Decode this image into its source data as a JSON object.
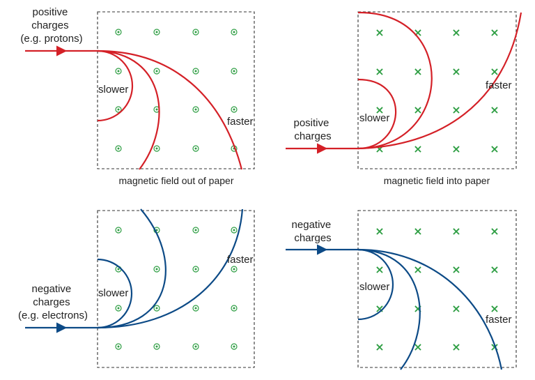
{
  "panels": {
    "top_left": {
      "field_symbol": "dot-out-of-page-icon",
      "incoming_label_lines": [
        "positive",
        "charges",
        "(e.g. protons)"
      ],
      "slower_label": "slower",
      "faster_label": "faster",
      "caption": "magnetic field out of paper",
      "path_color": "#d42027"
    },
    "top_right": {
      "field_symbol": "cross-into-page-icon",
      "incoming_label_lines": [
        "positive",
        "charges"
      ],
      "slower_label": "slower",
      "faster_label": "faster",
      "caption": "magnetic field into paper",
      "path_color": "#d42027"
    },
    "bottom_left": {
      "field_symbol": "dot-out-of-page-icon",
      "incoming_label_lines": [
        "negative",
        "charges",
        "(e.g. electrons)"
      ],
      "slower_label": "slower",
      "faster_label": "faster",
      "caption": "",
      "path_color": "#0c4a86"
    },
    "bottom_right": {
      "field_symbol": "cross-into-page-icon",
      "incoming_label_lines": [
        "negative",
        "charges"
      ],
      "slower_label": "slower",
      "faster_label": "faster",
      "caption": "",
      "path_color": "#0c4a86"
    }
  },
  "colors": {
    "positive_path": "#d42027",
    "negative_path": "#0c4a86",
    "field_symbol": "#2e9e43"
  },
  "cross_glyph": "×"
}
